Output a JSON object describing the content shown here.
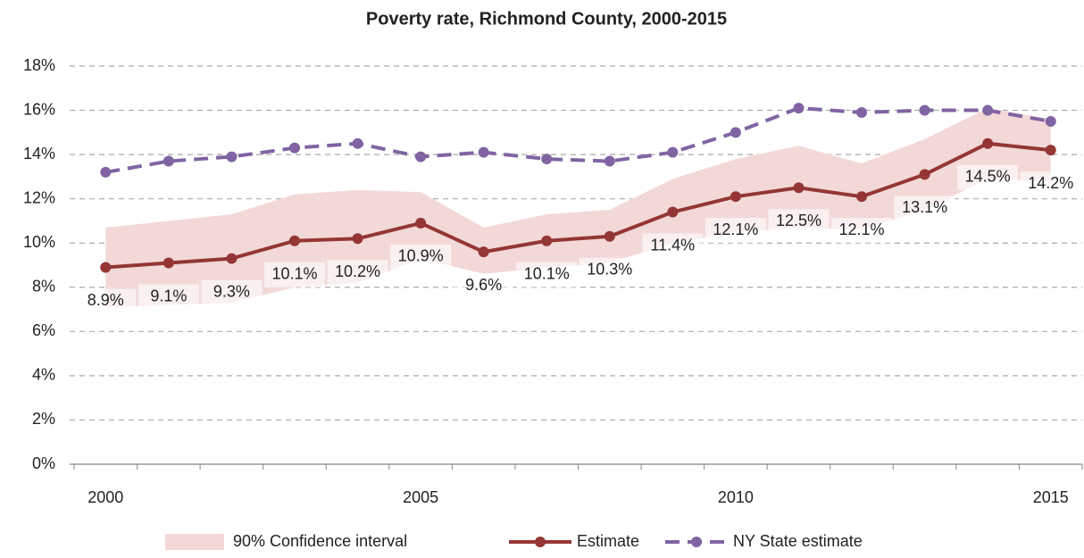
{
  "chart_data": {
    "type": "line",
    "title": "Poverty rate, Richmond County, 2000-2015",
    "categories": [
      "2000",
      null,
      null,
      null,
      null,
      "2005",
      null,
      null,
      null,
      null,
      "2010",
      null,
      null,
      null,
      null,
      "2015"
    ],
    "ylim": [
      0,
      18
    ],
    "yticks": [
      {
        "value": 0,
        "label": "0%"
      },
      {
        "value": 2,
        "label": "2%"
      },
      {
        "value": 4,
        "label": "4%"
      },
      {
        "value": 6,
        "label": "6%"
      },
      {
        "value": 8,
        "label": "8%"
      },
      {
        "value": 10,
        "label": "10%"
      },
      {
        "value": 12,
        "label": "12%"
      },
      {
        "value": 14,
        "label": "14%"
      },
      {
        "value": 16,
        "label": "16%"
      },
      {
        "value": 18,
        "label": "18%"
      }
    ],
    "grid": true,
    "legend": "bottom",
    "series": [
      {
        "name": "90% Confidence interval",
        "color": "#f2d9d8",
        "kind": "band",
        "high": [
          10.7,
          11.0,
          11.3,
          12.2,
          12.4,
          12.3,
          10.7,
          11.3,
          11.5,
          12.9,
          13.8,
          14.4,
          13.6,
          14.7,
          16.1,
          15.6
        ],
        "low": [
          7.1,
          7.2,
          7.3,
          8.0,
          8.2,
          9.3,
          8.6,
          8.9,
          9.1,
          10.0,
          10.5,
          10.7,
          10.6,
          11.5,
          12.9,
          12.8
        ]
      },
      {
        "name": "Estimate",
        "color": "#943634",
        "kind": "line",
        "dashed": false,
        "values": [
          8.9,
          9.1,
          9.3,
          10.1,
          10.2,
          10.9,
          9.6,
          10.1,
          10.3,
          11.4,
          12.1,
          12.5,
          12.1,
          13.1,
          14.5,
          14.2
        ],
        "value_labels": [
          "8.9%",
          "9.1%",
          "9.3%",
          "10.1%",
          "10.2%",
          "10.9%",
          "9.6%",
          "10.1%",
          "10.3%",
          "11.4%",
          "12.1%",
          "12.5%",
          "12.1%",
          "13.1%",
          "14.5%",
          "14.2%"
        ]
      },
      {
        "name": "NY State estimate",
        "color": "#8064a2",
        "kind": "line",
        "dashed": true,
        "values": [
          13.2,
          13.7,
          13.9,
          14.3,
          14.5,
          13.9,
          14.1,
          13.8,
          13.7,
          14.1,
          15.0,
          16.1,
          15.9,
          16.0,
          16.0,
          15.5
        ]
      }
    ]
  }
}
